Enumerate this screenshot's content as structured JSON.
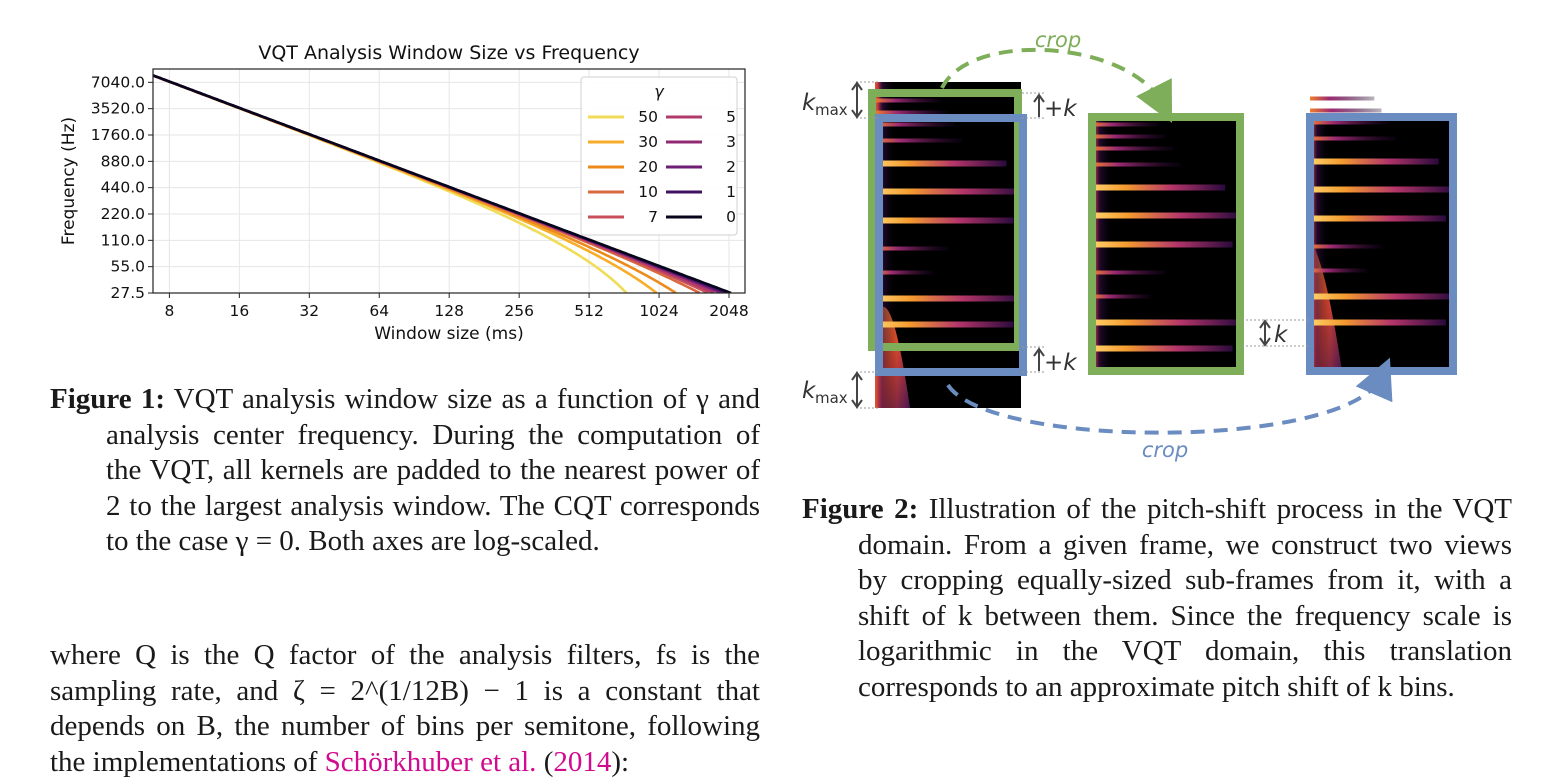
{
  "chart_data": {
    "type": "line",
    "title": "VQT Analysis Window Size vs Frequency",
    "xlabel": "Window size (ms)",
    "ylabel": "Frequency (Hz)",
    "x_scale": "log2",
    "y_scale": "log2",
    "xlim": [
      6.8,
      2400
    ],
    "ylim": [
      27.5,
      10000
    ],
    "x_ticks": [
      "8",
      "16",
      "32",
      "64",
      "128",
      "256",
      "512",
      "1024",
      "2048"
    ],
    "y_ticks": [
      "27.5",
      "55.0",
      "110.0",
      "220.0",
      "440.0",
      "880.0",
      "1760.0",
      "3520.0",
      "7040.0"
    ],
    "grid": true,
    "legend": {
      "title": "γ",
      "position": "upper right",
      "columns": 2
    },
    "series": [
      {
        "name": "50",
        "gamma": 50,
        "color": "#f0dc56"
      },
      {
        "name": "30",
        "gamma": 30,
        "color": "#f7ad2a"
      },
      {
        "name": "20",
        "gamma": 20,
        "color": "#ec8a1c"
      },
      {
        "name": "10",
        "gamma": 10,
        "color": "#d8683f"
      },
      {
        "name": "7",
        "gamma": 7,
        "color": "#c9505a"
      },
      {
        "name": "5",
        "gamma": 5,
        "color": "#b03a6b"
      },
      {
        "name": "3",
        "gamma": 3,
        "color": "#922a73"
      },
      {
        "name": "2",
        "gamma": 2,
        "color": "#6f1c75"
      },
      {
        "name": "1",
        "gamma": 1,
        "color": "#3e1162"
      },
      {
        "name": "0",
        "gamma": 0,
        "color": "#07051a"
      }
    ]
  },
  "figure2": {
    "crop_top_label": "crop",
    "crop_bottom_label": "crop",
    "kmax_top": "k",
    "kmax_bottom": "k",
    "kmax_sub": "max",
    "plus_k_top": "+k",
    "plus_k_bottom": "+k",
    "k_shift": "k",
    "green_color": "#7fae5a",
    "blue_color": "#6a8cc0"
  },
  "caption1": {
    "label": "Figure 1:",
    "text": "VQT analysis window size as a function of γ and analysis center frequency. During the computation of the VQT, all kernels are padded to the nearest power of 2 to the largest analysis window. The CQT corresponds to the case γ = 0. Both axes are log-scaled."
  },
  "caption2": {
    "label": "Figure 2:",
    "text": "Illustration of the pitch-shift process in the VQT domain. From a given frame, we construct two views by cropping equally-sized sub-frames from it, with a shift of k between them. Since the frequency scale is logarithmic in the VQT domain, this translation corresponds to an approximate pitch shift of k bins."
  },
  "body": {
    "text_before_cite": "where Q is the Q factor of the analysis filters, fs is the sampling rate, and ζ = 2^(1/12B) − 1 is a constant that depends on B, the number of bins per semitone, following the implementations of",
    "cite": "Schörkhuber et al.",
    "year": "2014",
    "after": "):"
  }
}
